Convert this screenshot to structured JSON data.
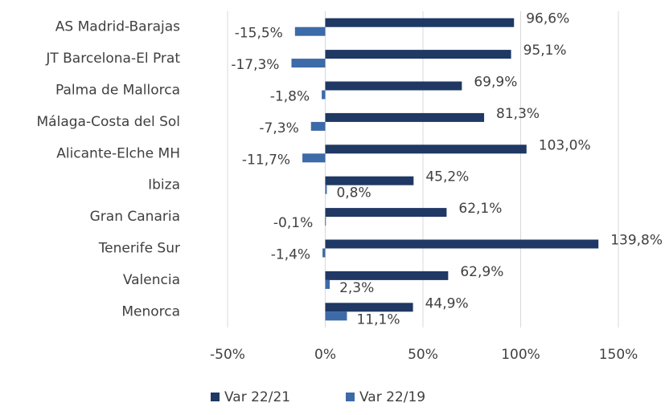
{
  "chart_data": {
    "type": "bar",
    "orientation": "horizontal",
    "categories": [
      "AS Madrid-Barajas",
      "JT Barcelona-El Prat",
      "Palma de Mallorca",
      "Málaga-Costa del Sol",
      "Alicante-Elche MH",
      "Ibiza",
      "Gran Canaria",
      "Tenerife Sur",
      "Valencia",
      "Menorca"
    ],
    "series": [
      {
        "name": "Var 22/21",
        "color": "#1f3864",
        "values": [
          96.6,
          95.1,
          69.9,
          81.3,
          103.0,
          45.2,
          62.1,
          139.8,
          62.9,
          44.9
        ],
        "value_labels": [
          "96,6%",
          "95,1%",
          "69,9%",
          "81,3%",
          "103,0%",
          "45,2%",
          "62,1%",
          "139,8%",
          "62,9%",
          "44,9%"
        ]
      },
      {
        "name": "Var 22/19",
        "color": "#3d6aa8",
        "values": [
          -15.5,
          -17.3,
          -1.8,
          -7.3,
          -11.7,
          0.8,
          -0.1,
          -1.4,
          2.3,
          11.1
        ],
        "value_labels": [
          "-15,5%",
          "-17,3%",
          "-1,8%",
          "-7,3%",
          "-11,7%",
          "0,8%",
          "-0,1%",
          "-1,4%",
          "2,3%",
          "11,1%"
        ]
      }
    ],
    "xlim": [
      -50,
      150
    ],
    "xticks": [
      {
        "value": -50,
        "label": "-50%"
      },
      {
        "value": 0,
        "label": "0%"
      },
      {
        "value": 50,
        "label": "50%"
      },
      {
        "value": 100,
        "label": "100%"
      },
      {
        "value": 150,
        "label": "150%"
      }
    ],
    "grid": true,
    "legend": "bottom"
  }
}
